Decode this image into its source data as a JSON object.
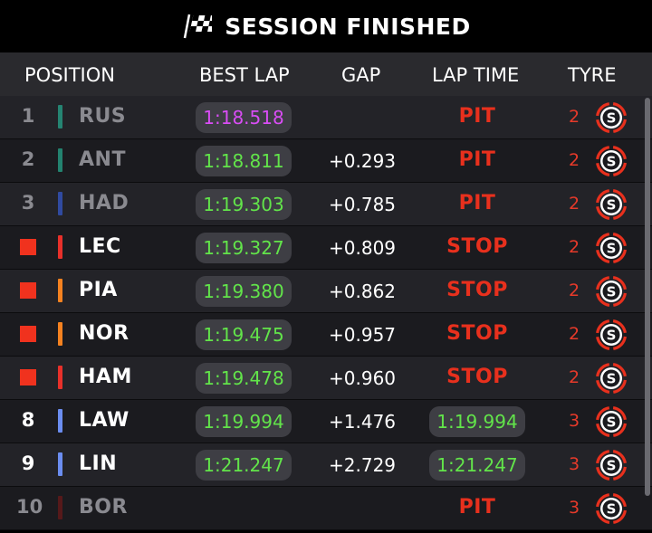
{
  "header": {
    "title": "SESSION FINISHED",
    "icon": "chequered-flag-icon"
  },
  "columns": {
    "position": "POSITION",
    "best_lap": "BEST LAP",
    "gap": "GAP",
    "lap_time": "LAP TIME",
    "tyre": "TYRE"
  },
  "colors": {
    "status_red": "#e8301d",
    "fastest_purple": "#d94df5",
    "lap_green": "#62e44a",
    "flag_red": "#f0321e"
  },
  "rows": [
    {
      "pos": "1",
      "pos_flag": false,
      "pos_dim": true,
      "team_color": "#27a58b",
      "team_dim": true,
      "driver": "RUS",
      "driver_dim": true,
      "best_lap": "1:18.518",
      "best_purple": true,
      "gap": "",
      "status": "PIT",
      "lap_time": "",
      "tyre_count": "2",
      "tyre": "S"
    },
    {
      "pos": "2",
      "pos_flag": false,
      "pos_dim": true,
      "team_color": "#27a58b",
      "team_dim": true,
      "driver": "ANT",
      "driver_dim": true,
      "best_lap": "1:18.811",
      "best_purple": false,
      "gap": "+0.293",
      "status": "PIT",
      "lap_time": "",
      "tyre_count": "2",
      "tyre": "S"
    },
    {
      "pos": "3",
      "pos_flag": false,
      "pos_dim": true,
      "team_color": "#3558c8",
      "team_dim": true,
      "driver": "HAD",
      "driver_dim": true,
      "best_lap": "1:19.303",
      "best_purple": false,
      "gap": "+0.785",
      "status": "PIT",
      "lap_time": "",
      "tyre_count": "2",
      "tyre": "S"
    },
    {
      "pos": "",
      "pos_flag": true,
      "pos_dim": false,
      "team_color": "#e8302a",
      "team_dim": false,
      "driver": "LEC",
      "driver_dim": false,
      "best_lap": "1:19.327",
      "best_purple": false,
      "gap": "+0.809",
      "status": "STOP",
      "lap_time": "",
      "tyre_count": "2",
      "tyre": "S"
    },
    {
      "pos": "",
      "pos_flag": true,
      "pos_dim": false,
      "team_color": "#f58220",
      "team_dim": false,
      "driver": "PIA",
      "driver_dim": false,
      "best_lap": "1:19.380",
      "best_purple": false,
      "gap": "+0.862",
      "status": "STOP",
      "lap_time": "",
      "tyre_count": "2",
      "tyre": "S"
    },
    {
      "pos": "",
      "pos_flag": true,
      "pos_dim": false,
      "team_color": "#f58220",
      "team_dim": false,
      "driver": "NOR",
      "driver_dim": false,
      "best_lap": "1:19.475",
      "best_purple": false,
      "gap": "+0.957",
      "status": "STOP",
      "lap_time": "",
      "tyre_count": "2",
      "tyre": "S"
    },
    {
      "pos": "",
      "pos_flag": true,
      "pos_dim": false,
      "team_color": "#e8302a",
      "team_dim": false,
      "driver": "HAM",
      "driver_dim": false,
      "best_lap": "1:19.478",
      "best_purple": false,
      "gap": "+0.960",
      "status": "STOP",
      "lap_time": "",
      "tyre_count": "2",
      "tyre": "S"
    },
    {
      "pos": "8",
      "pos_flag": false,
      "pos_dim": false,
      "team_color": "#6b8df0",
      "team_dim": false,
      "driver": "LAW",
      "driver_dim": false,
      "best_lap": "1:19.994",
      "best_purple": false,
      "gap": "+1.476",
      "status": "",
      "lap_time": "1:19.994",
      "tyre_count": "3",
      "tyre": "S"
    },
    {
      "pos": "9",
      "pos_flag": false,
      "pos_dim": false,
      "team_color": "#6b8df0",
      "team_dim": false,
      "driver": "LIN",
      "driver_dim": false,
      "best_lap": "1:21.247",
      "best_purple": false,
      "gap": "+2.729",
      "status": "",
      "lap_time": "1:21.247",
      "tyre_count": "3",
      "tyre": "S"
    },
    {
      "pos": "10",
      "pos_flag": false,
      "pos_dim": true,
      "team_color": "#6b1a1a",
      "team_dim": true,
      "driver": "BOR",
      "driver_dim": true,
      "best_lap": "",
      "best_purple": false,
      "gap": "",
      "status": "PIT",
      "lap_time": "",
      "tyre_count": "3",
      "tyre": "S"
    }
  ]
}
